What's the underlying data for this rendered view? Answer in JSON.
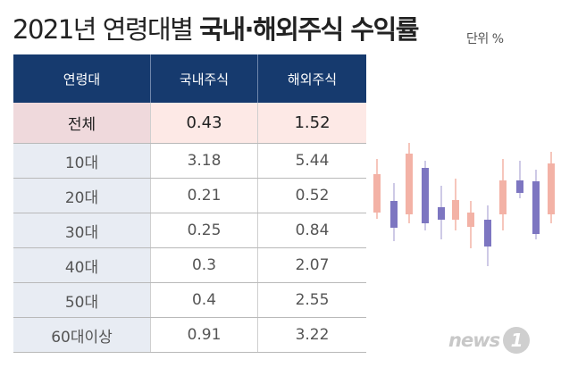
{
  "title": {
    "light": "2021년 연령대별",
    "bold": "국내·해외주식 수익률"
  },
  "unit": "단위 %",
  "chart_data": {
    "type": "table",
    "title": "2021년 연령대별 국내·해외주식 수익률",
    "unit": "단위 %",
    "columns": [
      "연령대",
      "국내주식",
      "해외주식"
    ],
    "rows": [
      {
        "label": "전체",
        "domestic": "0.43",
        "overseas": "1.52"
      },
      {
        "label": "10대",
        "domestic": "3.18",
        "overseas": "5.44"
      },
      {
        "label": "20대",
        "domestic": "0.21",
        "overseas": "0.52"
      },
      {
        "label": "30대",
        "domestic": "0.25",
        "overseas": "0.84"
      },
      {
        "label": "40대",
        "domestic": "0.3",
        "overseas": "2.07"
      },
      {
        "label": "50대",
        "domestic": "0.4",
        "overseas": "2.55"
      },
      {
        "label": "60대이상",
        "domestic": "0.91",
        "overseas": "3.22"
      }
    ]
  },
  "decoration": {
    "name": "candlestick-illustration",
    "colors": {
      "up": "#f3b2a6",
      "down": "#7d76c1",
      "wick": "#bdb9de"
    }
  },
  "logo": {
    "text": "news",
    "mark": "1"
  }
}
